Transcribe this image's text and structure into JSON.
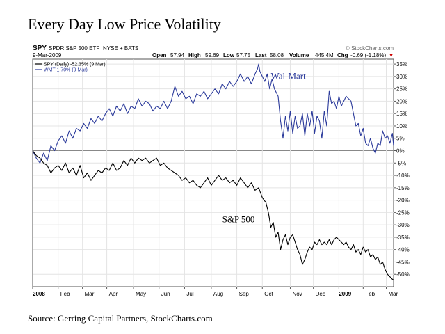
{
  "page": {
    "title": "Every Day Low Price Volatility",
    "source": "Source: Gerring Capital Partners, StockCharts.com"
  },
  "header": {
    "symbol": "SPY",
    "name": "SPDR S&P 500 ETF",
    "exchange": "NYSE + BATS",
    "watermark": "© StockCharts.com",
    "date": "9-Mar-2009",
    "open_label": "Open",
    "open": "57.94",
    "high_label": "High",
    "high": "59.69",
    "low_label": "Low",
    "low": "57.75",
    "last_label": "Last",
    "last": "58.08",
    "volume_label": "Volume",
    "volume": "445.4M",
    "chg_label": "Chg",
    "chg": "-0.69 (-1.18%)",
    "chg_marker": "▼"
  },
  "legend": [
    {
      "label": "SPY (Daily) -52.35% (9 Mar)"
    },
    {
      "label": "WMT 1.70% (9 Mar)"
    }
  ],
  "colors": {
    "spy_line": "#000000",
    "wmt_line": "#2b3a9b",
    "frame": "#555555",
    "grid": "#e4e4e4",
    "zero_line": "#888888",
    "down_marker": "#cc0000"
  },
  "chart_data": {
    "type": "line",
    "title": "Every Day Low Price Volatility",
    "x_unit": "trading days from 2 Jan 2008",
    "xlim": [
      0,
      297
    ],
    "ylim": [
      -55,
      37
    ],
    "yticks": [
      35,
      30,
      25,
      20,
      15,
      10,
      5,
      0,
      -5,
      -10,
      -15,
      -20,
      -25,
      -30,
      -35,
      -40,
      -45,
      -50
    ],
    "ytick_labels": [
      "35%",
      "30%",
      "25%",
      "20%",
      "15%",
      "10%",
      "5%",
      "0%",
      "-5%",
      "-10%",
      "-15%",
      "-20%",
      "-25%",
      "-30%",
      "-35%",
      "-40%",
      "-45%",
      "-50%"
    ],
    "xticks": [
      {
        "x": 0,
        "label": "2008",
        "bold": true
      },
      {
        "x": 21,
        "label": "Feb"
      },
      {
        "x": 41,
        "label": "Mar"
      },
      {
        "x": 61,
        "label": "Apr"
      },
      {
        "x": 83,
        "label": "May"
      },
      {
        "x": 104,
        "label": "Jun"
      },
      {
        "x": 125,
        "label": "Jul"
      },
      {
        "x": 147,
        "label": "Aug"
      },
      {
        "x": 168,
        "label": "Sep"
      },
      {
        "x": 189,
        "label": "Oct"
      },
      {
        "x": 212,
        "label": "Nov"
      },
      {
        "x": 231,
        "label": "Dec"
      },
      {
        "x": 252,
        "label": "2009",
        "bold": true
      },
      {
        "x": 272,
        "label": "Feb"
      },
      {
        "x": 291,
        "label": "Mar"
      }
    ],
    "annotations": [
      {
        "text": "Wal-Mart",
        "x": 196,
        "y": 29
      },
      {
        "text": "S&P 500",
        "x": 156,
        "y": -29
      }
    ],
    "series": [
      {
        "name": "WMT",
        "label": "WMT 1.70% (9 Mar)",
        "points": [
          [
            0,
            0
          ],
          [
            3,
            -3
          ],
          [
            6,
            -5
          ],
          [
            9,
            -1
          ],
          [
            12,
            -4
          ],
          [
            15,
            2
          ],
          [
            18,
            0
          ],
          [
            21,
            4
          ],
          [
            24,
            6
          ],
          [
            27,
            3
          ],
          [
            30,
            8
          ],
          [
            33,
            5
          ],
          [
            36,
            9
          ],
          [
            39,
            8
          ],
          [
            42,
            11
          ],
          [
            45,
            9
          ],
          [
            48,
            13
          ],
          [
            51,
            11
          ],
          [
            54,
            14
          ],
          [
            57,
            12
          ],
          [
            60,
            15
          ],
          [
            63,
            17
          ],
          [
            66,
            14
          ],
          [
            69,
            18
          ],
          [
            72,
            16
          ],
          [
            75,
            19
          ],
          [
            78,
            15
          ],
          [
            81,
            18
          ],
          [
            84,
            17
          ],
          [
            87,
            21
          ],
          [
            90,
            18
          ],
          [
            93,
            20
          ],
          [
            96,
            19
          ],
          [
            99,
            16
          ],
          [
            102,
            18
          ],
          [
            105,
            17
          ],
          [
            108,
            20
          ],
          [
            111,
            17
          ],
          [
            114,
            20
          ],
          [
            117,
            26
          ],
          [
            120,
            22
          ],
          [
            123,
            24
          ],
          [
            126,
            21
          ],
          [
            129,
            22
          ],
          [
            132,
            19
          ],
          [
            135,
            23
          ],
          [
            138,
            22
          ],
          [
            141,
            24
          ],
          [
            144,
            21
          ],
          [
            147,
            23
          ],
          [
            150,
            25
          ],
          [
            153,
            23
          ],
          [
            156,
            27
          ],
          [
            159,
            25
          ],
          [
            162,
            28
          ],
          [
            165,
            26
          ],
          [
            168,
            28
          ],
          [
            171,
            31
          ],
          [
            174,
            28
          ],
          [
            177,
            30
          ],
          [
            180,
            27
          ],
          [
            183,
            31
          ],
          [
            185,
            33
          ],
          [
            186,
            35
          ],
          [
            187,
            32
          ],
          [
            189,
            30
          ],
          [
            191,
            28
          ],
          [
            193,
            31
          ],
          [
            195,
            25
          ],
          [
            197,
            29
          ],
          [
            199,
            25
          ],
          [
            202,
            22
          ],
          [
            204,
            12
          ],
          [
            206,
            5
          ],
          [
            208,
            14
          ],
          [
            210,
            8
          ],
          [
            212,
            16
          ],
          [
            214,
            7
          ],
          [
            216,
            14
          ],
          [
            218,
            9
          ],
          [
            220,
            10
          ],
          [
            222,
            15
          ],
          [
            224,
            6
          ],
          [
            226,
            15
          ],
          [
            228,
            10
          ],
          [
            230,
            16
          ],
          [
            232,
            7
          ],
          [
            234,
            14
          ],
          [
            236,
            12
          ],
          [
            238,
            5
          ],
          [
            240,
            16
          ],
          [
            242,
            10
          ],
          [
            244,
            24
          ],
          [
            246,
            19
          ],
          [
            248,
            20
          ],
          [
            250,
            17
          ],
          [
            252,
            22
          ],
          [
            254,
            18
          ],
          [
            256,
            20
          ],
          [
            258,
            22
          ],
          [
            260,
            21
          ],
          [
            262,
            20
          ],
          [
            264,
            15
          ],
          [
            266,
            10
          ],
          [
            268,
            11
          ],
          [
            270,
            6
          ],
          [
            272,
            9
          ],
          [
            274,
            3
          ],
          [
            276,
            2
          ],
          [
            278,
            5
          ],
          [
            280,
            1
          ],
          [
            282,
            -1
          ],
          [
            284,
            3
          ],
          [
            286,
            2
          ],
          [
            288,
            8
          ],
          [
            290,
            5
          ],
          [
            292,
            6
          ],
          [
            294,
            3
          ],
          [
            296,
            7
          ],
          [
            297,
            2
          ]
        ]
      },
      {
        "name": "SPY",
        "label": "SPY (Daily) -52.35% (9 Mar)",
        "points": [
          [
            0,
            0
          ],
          [
            3,
            -2
          ],
          [
            6,
            -3
          ],
          [
            9,
            -5
          ],
          [
            12,
            -6
          ],
          [
            15,
            -9
          ],
          [
            18,
            -7
          ],
          [
            21,
            -6
          ],
          [
            24,
            -8
          ],
          [
            27,
            -5
          ],
          [
            30,
            -9
          ],
          [
            33,
            -7
          ],
          [
            36,
            -10
          ],
          [
            39,
            -6
          ],
          [
            42,
            -11
          ],
          [
            45,
            -9
          ],
          [
            48,
            -12
          ],
          [
            51,
            -10
          ],
          [
            54,
            -8
          ],
          [
            57,
            -9
          ],
          [
            60,
            -7
          ],
          [
            63,
            -8
          ],
          [
            66,
            -5
          ],
          [
            69,
            -8
          ],
          [
            72,
            -7
          ],
          [
            75,
            -4
          ],
          [
            78,
            -6
          ],
          [
            81,
            -3
          ],
          [
            84,
            -5
          ],
          [
            87,
            -3
          ],
          [
            90,
            -4
          ],
          [
            93,
            -3
          ],
          [
            96,
            -5
          ],
          [
            99,
            -4
          ],
          [
            102,
            -3
          ],
          [
            105,
            -6
          ],
          [
            108,
            -5
          ],
          [
            111,
            -7
          ],
          [
            114,
            -8
          ],
          [
            117,
            -9
          ],
          [
            120,
            -10
          ],
          [
            123,
            -12
          ],
          [
            126,
            -11
          ],
          [
            129,
            -13
          ],
          [
            132,
            -12
          ],
          [
            135,
            -14
          ],
          [
            138,
            -15
          ],
          [
            141,
            -13
          ],
          [
            144,
            -11
          ],
          [
            147,
            -14
          ],
          [
            150,
            -12
          ],
          [
            153,
            -10
          ],
          [
            156,
            -12
          ],
          [
            159,
            -11
          ],
          [
            162,
            -13
          ],
          [
            165,
            -12
          ],
          [
            168,
            -14
          ],
          [
            171,
            -11
          ],
          [
            174,
            -13
          ],
          [
            177,
            -15
          ],
          [
            180,
            -13
          ],
          [
            183,
            -16
          ],
          [
            186,
            -15
          ],
          [
            189,
            -19
          ],
          [
            192,
            -21
          ],
          [
            194,
            -25
          ],
          [
            196,
            -31
          ],
          [
            198,
            -29
          ],
          [
            200,
            -35
          ],
          [
            202,
            -33
          ],
          [
            204,
            -40
          ],
          [
            206,
            -36
          ],
          [
            208,
            -34
          ],
          [
            210,
            -38
          ],
          [
            212,
            -35
          ],
          [
            214,
            -34
          ],
          [
            216,
            -37
          ],
          [
            218,
            -40
          ],
          [
            220,
            -42
          ],
          [
            222,
            -46
          ],
          [
            224,
            -44
          ],
          [
            226,
            -41
          ],
          [
            228,
            -39
          ],
          [
            230,
            -40
          ],
          [
            232,
            -37
          ],
          [
            234,
            -38
          ],
          [
            236,
            -36
          ],
          [
            238,
            -38
          ],
          [
            240,
            -37
          ],
          [
            242,
            -38
          ],
          [
            244,
            -36
          ],
          [
            246,
            -38
          ],
          [
            248,
            -36
          ],
          [
            250,
            -35
          ],
          [
            252,
            -36
          ],
          [
            254,
            -37
          ],
          [
            256,
            -38
          ],
          [
            258,
            -37
          ],
          [
            260,
            -39
          ],
          [
            262,
            -40
          ],
          [
            264,
            -38
          ],
          [
            266,
            -41
          ],
          [
            268,
            -40
          ],
          [
            270,
            -42
          ],
          [
            272,
            -39
          ],
          [
            274,
            -41
          ],
          [
            276,
            -40
          ],
          [
            278,
            -43
          ],
          [
            280,
            -42
          ],
          [
            282,
            -44
          ],
          [
            284,
            -43
          ],
          [
            286,
            -46
          ],
          [
            288,
            -45
          ],
          [
            290,
            -48
          ],
          [
            292,
            -50
          ],
          [
            294,
            -51
          ],
          [
            296,
            -52
          ],
          [
            297,
            -52.35
          ]
        ]
      }
    ],
    "grid": true,
    "legend_position": "top-left"
  }
}
